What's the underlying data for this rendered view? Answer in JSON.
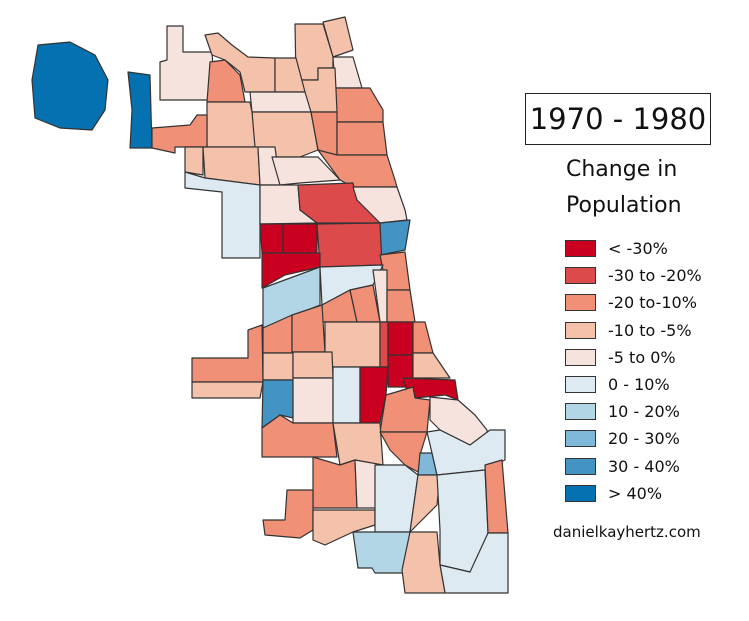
{
  "title": "1970 - 1980",
  "legend": {
    "title_line1": "Change in",
    "title_line2": "Population",
    "items": [
      {
        "label": "< -30%",
        "color": "#ca0020"
      },
      {
        "label": "-30 to -20%",
        "color": "#dd4a4c"
      },
      {
        "label": "-20 to-10%",
        "color": "#ef9077"
      },
      {
        "label": "-10 to -5%",
        "color": "#f4c1aa"
      },
      {
        "label": "-5 to 0%",
        "color": "#f7e3dd"
      },
      {
        "label": "0 - 10%",
        "color": "#deeaf1"
      },
      {
        "label": "10 - 20%",
        "color": "#b3d6e6"
      },
      {
        "label": "20 - 30%",
        "color": "#7fb8d8"
      },
      {
        "label": "30 - 40%",
        "color": "#4393c3"
      },
      {
        "label": "> 40%",
        "color": "#0571b0"
      }
    ]
  },
  "map": {
    "area_classes": [
      9,
      9,
      4,
      3,
      2,
      3,
      3,
      4,
      2,
      3,
      3,
      4,
      3,
      2,
      2,
      2,
      3,
      2,
      3,
      3,
      4,
      4,
      5,
      4,
      1,
      4,
      8,
      0,
      0,
      1,
      0,
      2,
      6,
      5,
      4,
      2,
      2,
      2,
      2,
      2,
      3,
      1,
      0,
      2,
      2,
      3,
      3,
      3,
      8,
      4,
      5,
      0,
      0,
      0,
      3,
      4,
      2,
      2,
      3,
      2,
      7,
      5,
      2,
      4,
      2,
      3,
      5,
      3,
      5,
      2,
      5,
      6,
      3
    ]
  },
  "credit": "danielkayhertz.com"
}
